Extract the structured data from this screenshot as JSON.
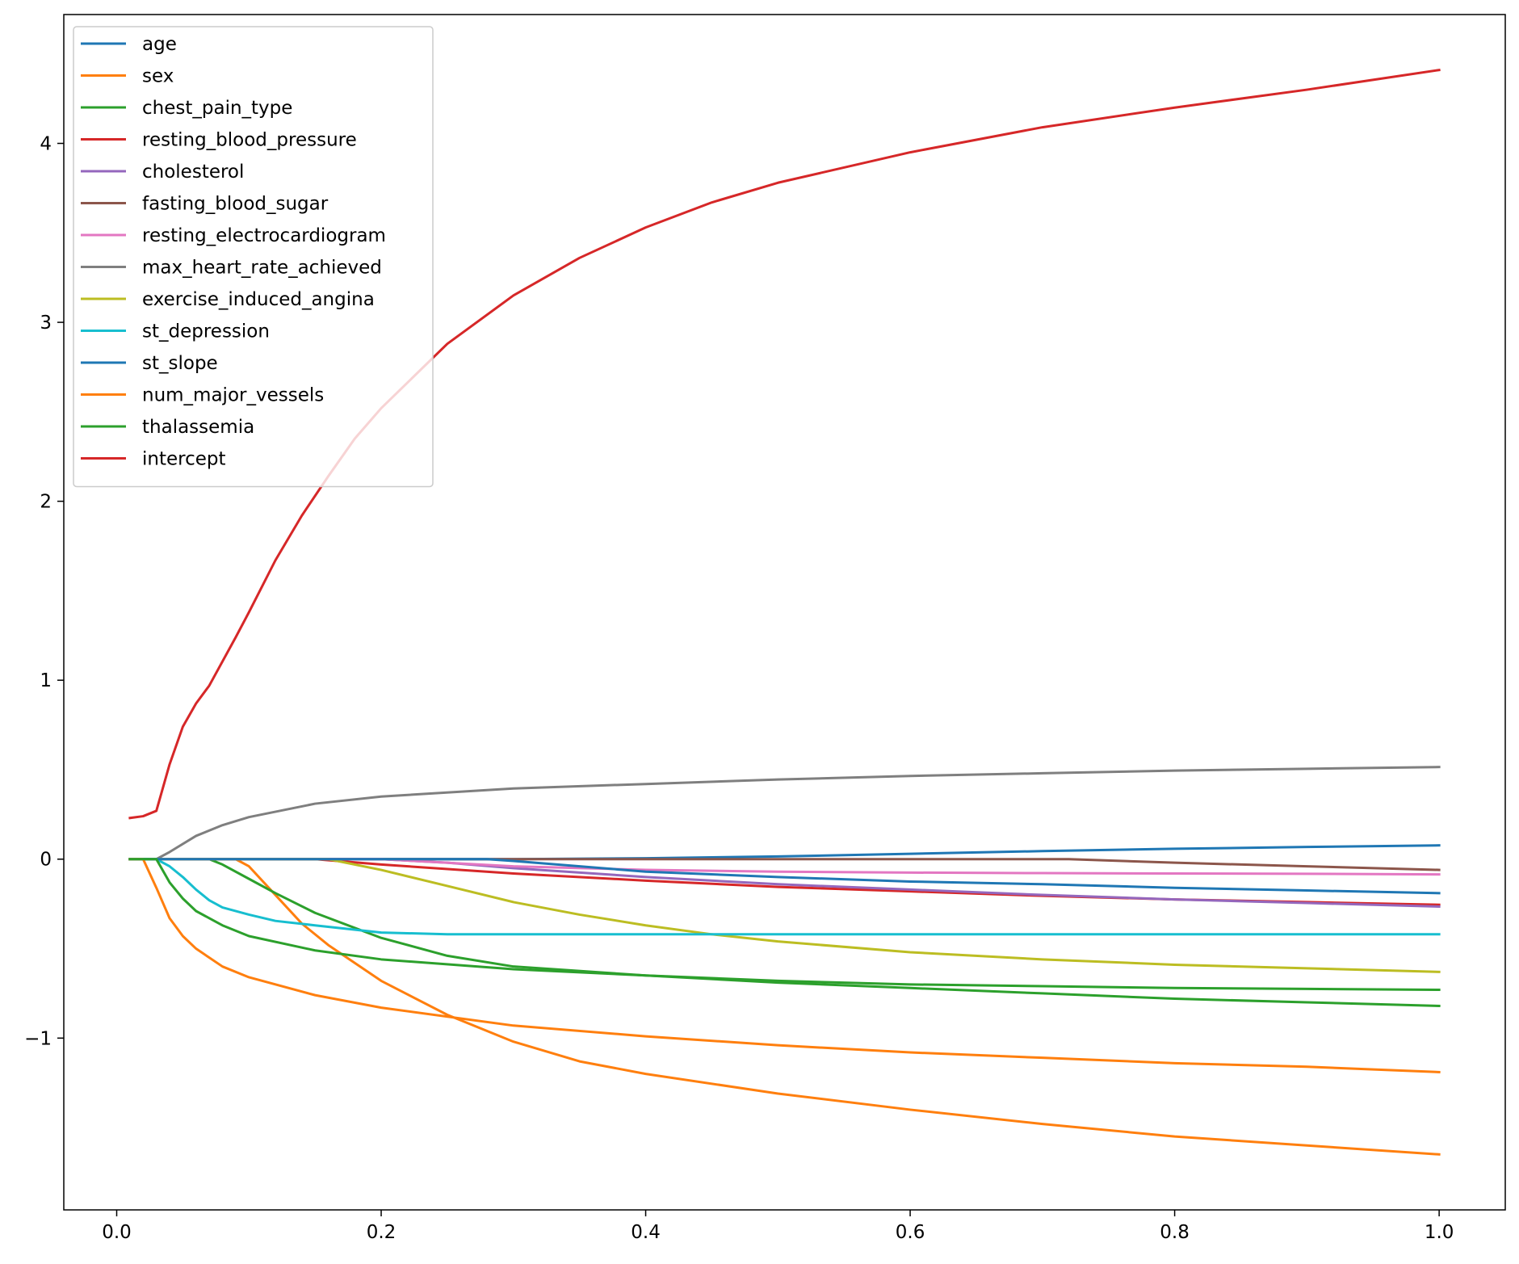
{
  "chart_data": {
    "type": "line",
    "title": "",
    "xlabel": "",
    "ylabel": "",
    "xlim": [
      -0.04,
      1.05
    ],
    "ylim": [
      -1.96,
      4.72
    ],
    "xticks": [
      0.0,
      0.2,
      0.4,
      0.6,
      0.8,
      1.0
    ],
    "xtick_labels": [
      "0.0",
      "0.2",
      "0.4",
      "0.6",
      "0.8",
      "1.0"
    ],
    "yticks": [
      -1,
      0,
      1,
      2,
      3,
      4
    ],
    "ytick_labels": [
      "−1",
      "0",
      "1",
      "2",
      "3",
      "4"
    ],
    "grid": false,
    "legend_position": "upper-left",
    "series": [
      {
        "name": "age",
        "color": "#1f77b4",
        "points": [
          [
            0.01,
            0
          ],
          [
            0.3,
            0
          ],
          [
            0.4,
            0.005
          ],
          [
            0.5,
            0.015
          ],
          [
            0.6,
            0.03
          ],
          [
            0.7,
            0.045
          ],
          [
            0.8,
            0.058
          ],
          [
            0.9,
            0.068
          ],
          [
            1.0,
            0.077
          ]
        ]
      },
      {
        "name": "sex",
        "color": "#ff7f0e",
        "points": [
          [
            0.01,
            0
          ],
          [
            0.09,
            0
          ],
          [
            0.1,
            -0.04
          ],
          [
            0.12,
            -0.2
          ],
          [
            0.14,
            -0.36
          ],
          [
            0.16,
            -0.48
          ],
          [
            0.18,
            -0.58
          ],
          [
            0.2,
            -0.68
          ],
          [
            0.25,
            -0.87
          ],
          [
            0.3,
            -1.02
          ],
          [
            0.35,
            -1.13
          ],
          [
            0.4,
            -1.2
          ],
          [
            0.5,
            -1.31
          ],
          [
            0.6,
            -1.4
          ],
          [
            0.7,
            -1.48
          ],
          [
            0.8,
            -1.55
          ],
          [
            0.9,
            -1.6
          ],
          [
            1.0,
            -1.65
          ]
        ]
      },
      {
        "name": "chest_pain_type",
        "color": "#2ca02c",
        "points": [
          [
            0.01,
            0
          ],
          [
            0.07,
            0
          ],
          [
            0.08,
            -0.03
          ],
          [
            0.1,
            -0.11
          ],
          [
            0.12,
            -0.19
          ],
          [
            0.15,
            -0.3
          ],
          [
            0.2,
            -0.44
          ],
          [
            0.25,
            -0.54
          ],
          [
            0.3,
            -0.6
          ],
          [
            0.4,
            -0.65
          ],
          [
            0.5,
            -0.68
          ],
          [
            0.6,
            -0.7
          ],
          [
            0.7,
            -0.71
          ],
          [
            0.8,
            -0.72
          ],
          [
            0.9,
            -0.725
          ],
          [
            1.0,
            -0.73
          ]
        ]
      },
      {
        "name": "resting_blood_pressure",
        "color": "#d62728",
        "points": [
          [
            0.01,
            0
          ],
          [
            0.15,
            0
          ],
          [
            0.2,
            -0.03
          ],
          [
            0.3,
            -0.08
          ],
          [
            0.4,
            -0.12
          ],
          [
            0.5,
            -0.155
          ],
          [
            0.6,
            -0.18
          ],
          [
            0.7,
            -0.205
          ],
          [
            0.8,
            -0.225
          ],
          [
            0.9,
            -0.24
          ],
          [
            1.0,
            -0.255
          ]
        ]
      },
      {
        "name": "cholesterol",
        "color": "#9467bd",
        "points": [
          [
            0.01,
            0
          ],
          [
            0.2,
            0
          ],
          [
            0.25,
            -0.02
          ],
          [
            0.3,
            -0.05
          ],
          [
            0.4,
            -0.1
          ],
          [
            0.5,
            -0.14
          ],
          [
            0.6,
            -0.17
          ],
          [
            0.7,
            -0.2
          ],
          [
            0.8,
            -0.225
          ],
          [
            0.9,
            -0.245
          ],
          [
            1.0,
            -0.265
          ]
        ]
      },
      {
        "name": "fasting_blood_sugar",
        "color": "#8c564b",
        "points": [
          [
            0.01,
            0
          ],
          [
            0.72,
            0
          ],
          [
            0.8,
            -0.02
          ],
          [
            0.9,
            -0.04
          ],
          [
            1.0,
            -0.06
          ]
        ]
      },
      {
        "name": "resting_electrocardiogram",
        "color": "#e377c2",
        "points": [
          [
            0.01,
            0
          ],
          [
            0.2,
            0
          ],
          [
            0.3,
            -0.04
          ],
          [
            0.4,
            -0.06
          ],
          [
            0.5,
            -0.07
          ],
          [
            0.6,
            -0.075
          ],
          [
            0.7,
            -0.078
          ],
          [
            0.8,
            -0.08
          ],
          [
            0.9,
            -0.082
          ],
          [
            1.0,
            -0.085
          ]
        ]
      },
      {
        "name": "max_heart_rate_achieved",
        "color": "#7f7f7f",
        "points": [
          [
            0.01,
            0
          ],
          [
            0.03,
            0
          ],
          [
            0.04,
            0.04
          ],
          [
            0.06,
            0.13
          ],
          [
            0.08,
            0.19
          ],
          [
            0.1,
            0.235
          ],
          [
            0.15,
            0.31
          ],
          [
            0.2,
            0.35
          ],
          [
            0.3,
            0.395
          ],
          [
            0.4,
            0.42
          ],
          [
            0.5,
            0.445
          ],
          [
            0.6,
            0.465
          ],
          [
            0.7,
            0.48
          ],
          [
            0.8,
            0.495
          ],
          [
            0.9,
            0.505
          ],
          [
            1.0,
            0.515
          ]
        ]
      },
      {
        "name": "exercise_induced_angina",
        "color": "#bcbd22",
        "points": [
          [
            0.01,
            0
          ],
          [
            0.16,
            0
          ],
          [
            0.2,
            -0.06
          ],
          [
            0.25,
            -0.15
          ],
          [
            0.3,
            -0.24
          ],
          [
            0.35,
            -0.31
          ],
          [
            0.4,
            -0.37
          ],
          [
            0.45,
            -0.42
          ],
          [
            0.5,
            -0.46
          ],
          [
            0.6,
            -0.52
          ],
          [
            0.7,
            -0.56
          ],
          [
            0.8,
            -0.59
          ],
          [
            0.9,
            -0.61
          ],
          [
            1.0,
            -0.63
          ]
        ]
      },
      {
        "name": "st_depression",
        "color": "#17becf",
        "points": [
          [
            0.01,
            0
          ],
          [
            0.03,
            0
          ],
          [
            0.04,
            -0.04
          ],
          [
            0.05,
            -0.1
          ],
          [
            0.06,
            -0.17
          ],
          [
            0.07,
            -0.23
          ],
          [
            0.08,
            -0.27
          ],
          [
            0.1,
            -0.31
          ],
          [
            0.12,
            -0.345
          ],
          [
            0.15,
            -0.37
          ],
          [
            0.2,
            -0.41
          ],
          [
            0.25,
            -0.42
          ],
          [
            0.3,
            -0.42
          ],
          [
            0.5,
            -0.42
          ],
          [
            1.0,
            -0.42
          ]
        ]
      },
      {
        "name": "st_slope",
        "color": "#1f77b4",
        "points": [
          [
            0.01,
            0
          ],
          [
            0.28,
            0
          ],
          [
            0.3,
            -0.01
          ],
          [
            0.4,
            -0.07
          ],
          [
            0.5,
            -0.1
          ],
          [
            0.6,
            -0.125
          ],
          [
            0.7,
            -0.14
          ],
          [
            0.8,
            -0.16
          ],
          [
            0.9,
            -0.175
          ],
          [
            1.0,
            -0.19
          ]
        ]
      },
      {
        "name": "num_major_vessels",
        "color": "#ff7f0e",
        "points": [
          [
            0.01,
            0
          ],
          [
            0.02,
            0
          ],
          [
            0.03,
            -0.16
          ],
          [
            0.04,
            -0.33
          ],
          [
            0.05,
            -0.43
          ],
          [
            0.06,
            -0.5
          ],
          [
            0.08,
            -0.6
          ],
          [
            0.1,
            -0.66
          ],
          [
            0.15,
            -0.76
          ],
          [
            0.2,
            -0.83
          ],
          [
            0.3,
            -0.93
          ],
          [
            0.4,
            -0.99
          ],
          [
            0.5,
            -1.04
          ],
          [
            0.6,
            -1.08
          ],
          [
            0.7,
            -1.11
          ],
          [
            0.8,
            -1.14
          ],
          [
            0.9,
            -1.16
          ],
          [
            1.0,
            -1.19
          ]
        ]
      },
      {
        "name": "thalassemia",
        "color": "#2ca02c",
        "points": [
          [
            0.01,
            0
          ],
          [
            0.03,
            0
          ],
          [
            0.04,
            -0.13
          ],
          [
            0.05,
            -0.22
          ],
          [
            0.06,
            -0.29
          ],
          [
            0.08,
            -0.37
          ],
          [
            0.1,
            -0.43
          ],
          [
            0.15,
            -0.51
          ],
          [
            0.2,
            -0.56
          ],
          [
            0.3,
            -0.615
          ],
          [
            0.4,
            -0.65
          ],
          [
            0.5,
            -0.69
          ],
          [
            0.6,
            -0.72
          ],
          [
            0.7,
            -0.75
          ],
          [
            0.8,
            -0.78
          ],
          [
            0.9,
            -0.8
          ],
          [
            1.0,
            -0.82
          ]
        ]
      },
      {
        "name": "intercept",
        "color": "#d62728",
        "points": [
          [
            0.01,
            0.23
          ],
          [
            0.02,
            0.24
          ],
          [
            0.03,
            0.27
          ],
          [
            0.04,
            0.53
          ],
          [
            0.05,
            0.74
          ],
          [
            0.06,
            0.87
          ],
          [
            0.07,
            0.97
          ],
          [
            0.09,
            1.24
          ],
          [
            0.1,
            1.38
          ],
          [
            0.12,
            1.67
          ],
          [
            0.14,
            1.92
          ],
          [
            0.16,
            2.14
          ],
          [
            0.18,
            2.35
          ],
          [
            0.2,
            2.52
          ],
          [
            0.25,
            2.88
          ],
          [
            0.3,
            3.15
          ],
          [
            0.35,
            3.36
          ],
          [
            0.4,
            3.53
          ],
          [
            0.45,
            3.67
          ],
          [
            0.5,
            3.78
          ],
          [
            0.6,
            3.95
          ],
          [
            0.7,
            4.09
          ],
          [
            0.8,
            4.2
          ],
          [
            0.9,
            4.3
          ],
          [
            1.0,
            4.41
          ]
        ]
      }
    ]
  }
}
